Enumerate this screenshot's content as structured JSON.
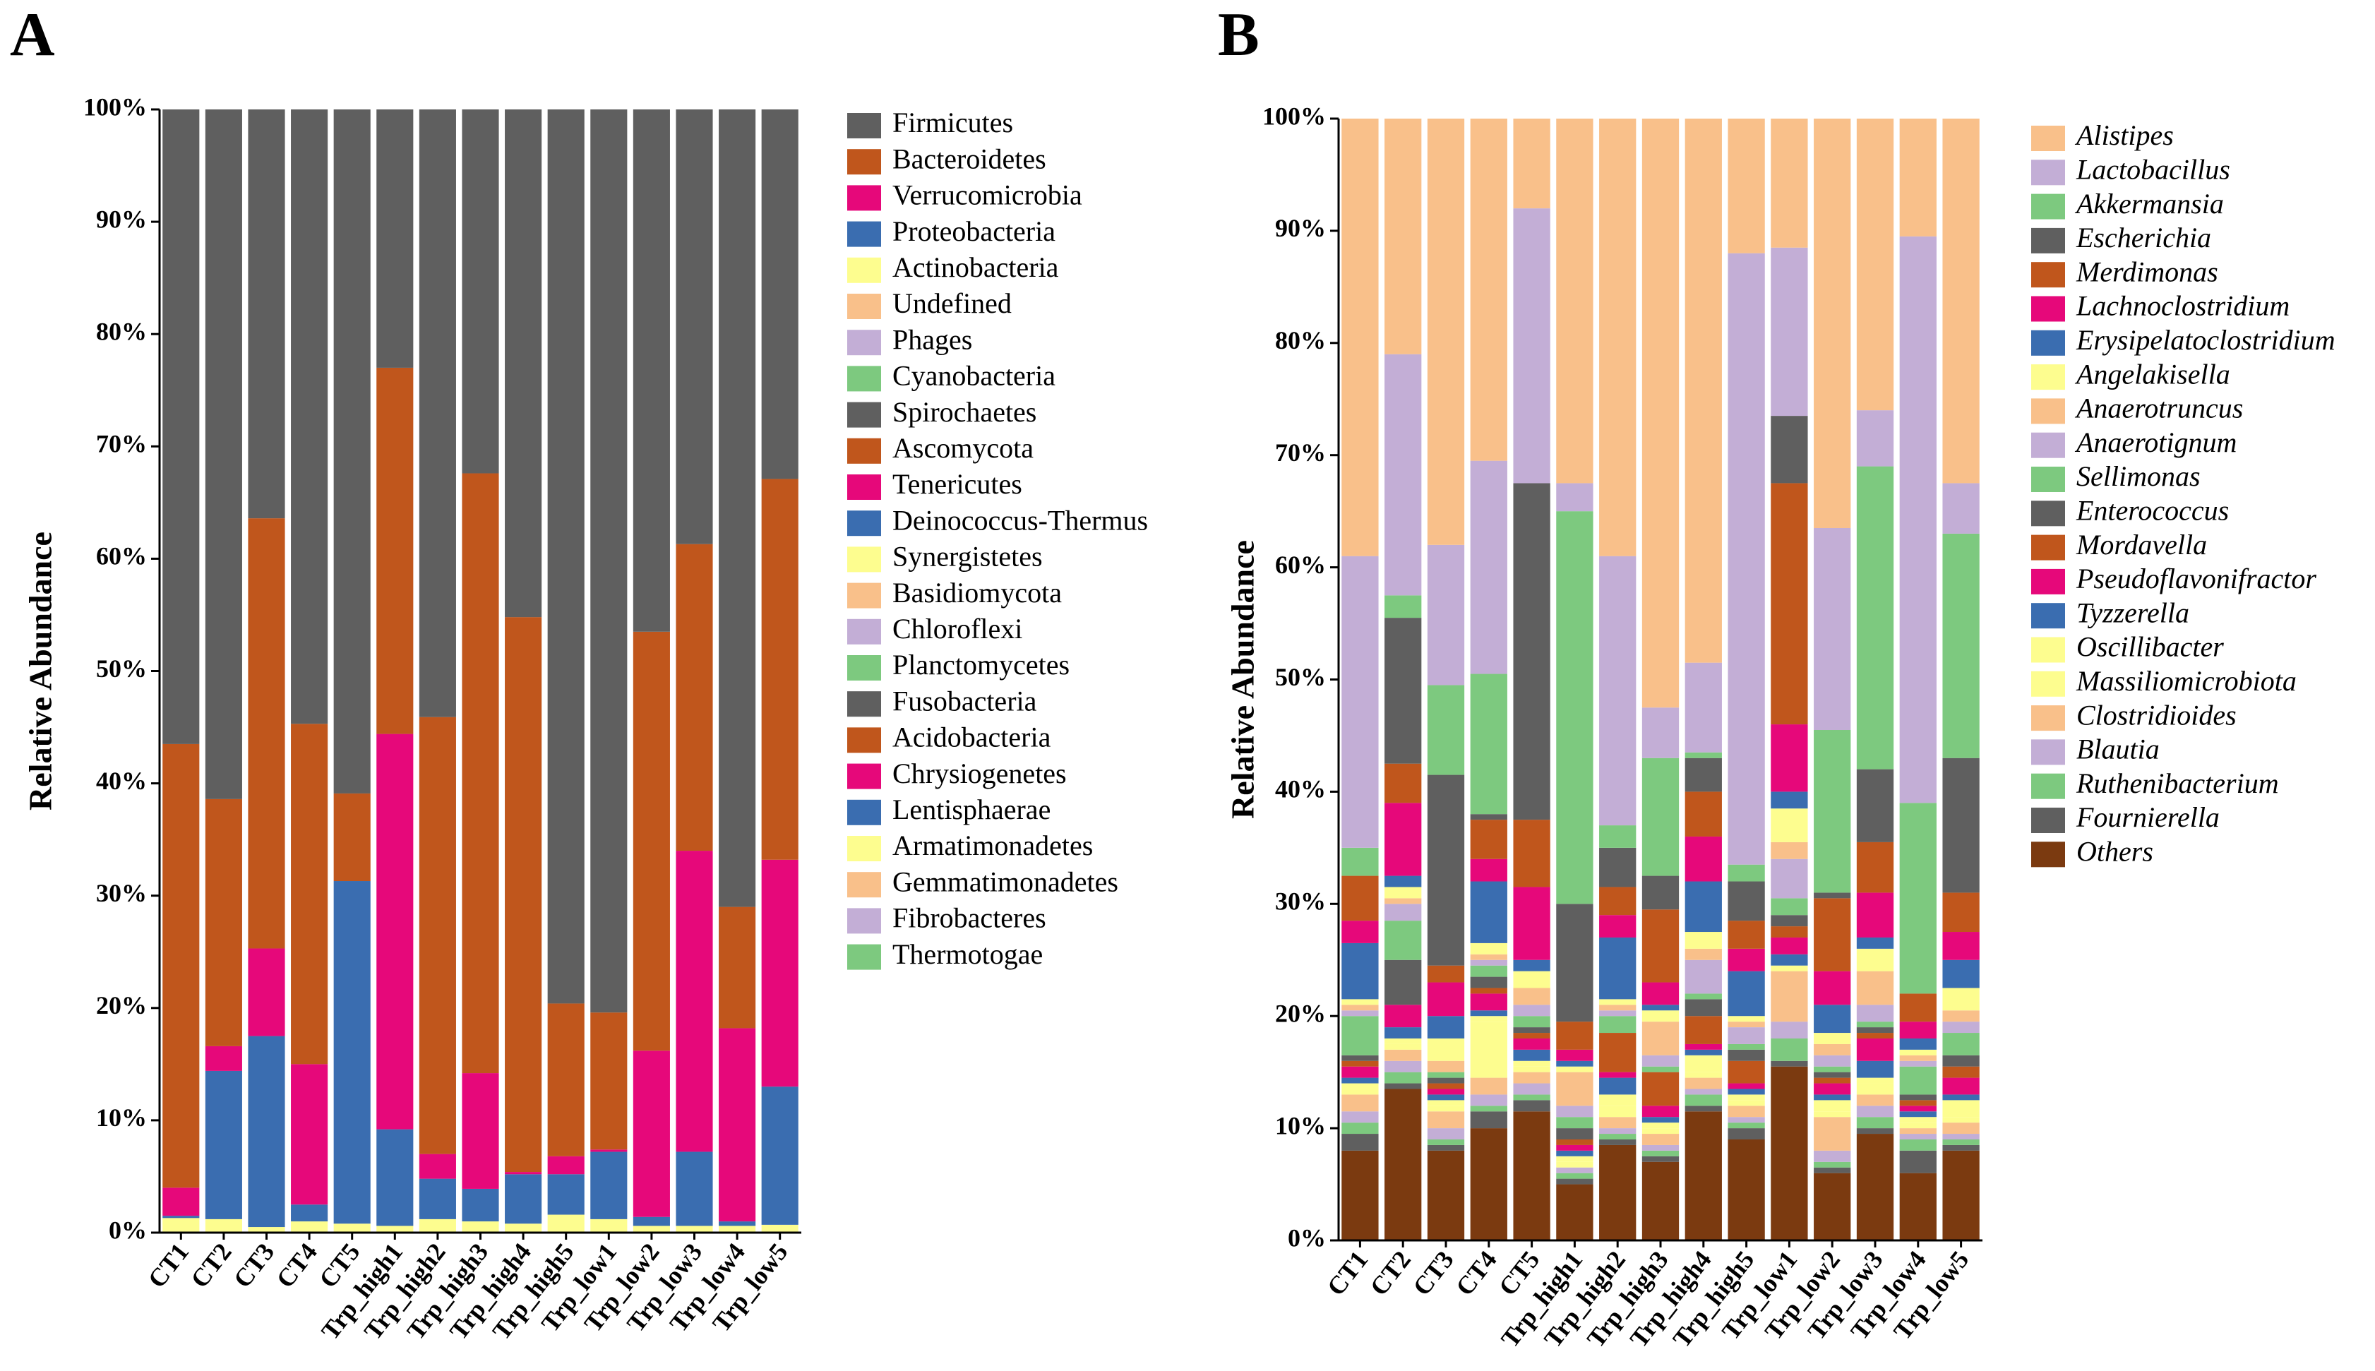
{
  "chart_data": [
    {
      "type": "bar",
      "stacked": true,
      "title": "A",
      "y_label": "Relative Abundance",
      "categories": [
        "CT1",
        "CT2",
        "CT3",
        "CT4",
        "CT5",
        "Trp_high1",
        "Trp_high2",
        "Trp_high3",
        "Trp_high4",
        "Trp_high5",
        "Trp_low1",
        "Trp_low2",
        "Trp_low3",
        "Trp_low4",
        "Trp_low5"
      ],
      "ylim": [
        0,
        100
      ],
      "yticks": [
        {
          "value": 0,
          "label": "0%"
        },
        {
          "value": 10,
          "label": "10%"
        },
        {
          "value": 20,
          "label": "20%"
        },
        {
          "value": 30,
          "label": "30%"
        },
        {
          "value": 40,
          "label": "40%"
        },
        {
          "value": 50,
          "label": "50%"
        },
        {
          "value": 60,
          "label": "60%"
        },
        {
          "value": 70,
          "label": "70%"
        },
        {
          "value": 80,
          "label": "80%"
        },
        {
          "value": 90,
          "label": "90%"
        },
        {
          "value": 100,
          "label": "100%"
        }
      ],
      "legend_italic": false,
      "series": [
        {
          "name": "Firmicutes",
          "color": "#5f5f5f",
          "values": [
            56.5,
            61.4,
            36.4,
            54.7,
            60.9,
            23,
            54.1,
            32.4,
            45.2,
            79.6,
            80.4,
            46.5,
            38.7,
            71,
            32.9
          ]
        },
        {
          "name": "Bacteroidetes",
          "color": "#c0561c",
          "values": [
            39.5,
            22,
            38.3,
            30.3,
            7.8,
            32.6,
            38.9,
            53.4,
            49.4,
            13.6,
            12.2,
            37.3,
            27.3,
            10.8,
            33.9
          ]
        },
        {
          "name": "Verrucomicrobia",
          "color": "#e6087a",
          "values": [
            2.5,
            2.2,
            7.8,
            12.5,
            0,
            35.2,
            2.2,
            10.3,
            0.2,
            1.6,
            0.2,
            14.8,
            26.8,
            17.2,
            20.2
          ]
        },
        {
          "name": "Proteobacteria",
          "color": "#3a6db0",
          "values": [
            0.2,
            13.2,
            17,
            1.5,
            30.5,
            8.6,
            3.6,
            2.9,
            4.4,
            3.6,
            6,
            0.8,
            6.6,
            0.4,
            12.3
          ]
        },
        {
          "name": "Actinobacteria",
          "color": "#fdfd8f",
          "values": [
            1.3,
            1.2,
            0.5,
            1,
            0.8,
            0.6,
            1.2,
            1,
            0.8,
            1.6,
            1.2,
            0.6,
            0.6,
            0.6,
            0.7
          ]
        },
        {
          "name": "Undefined",
          "color": "#f9c08a",
          "values": [
            0,
            0,
            0,
            0,
            0,
            0,
            0,
            0,
            0,
            0,
            0,
            0,
            0,
            0,
            0
          ]
        },
        {
          "name": "Phages",
          "color": "#c3aed6",
          "values": [
            0,
            0,
            0,
            0,
            0,
            0,
            0,
            0,
            0,
            0,
            0,
            0,
            0,
            0,
            0
          ]
        },
        {
          "name": "Cyanobacteria",
          "color": "#7dc97f",
          "values": [
            0,
            0,
            0,
            0,
            0,
            0,
            0,
            0,
            0,
            0,
            0,
            0,
            0,
            0,
            0
          ]
        },
        {
          "name": "Spirochaetes",
          "color": "#5f5f5f",
          "values": [
            0,
            0,
            0,
            0,
            0,
            0,
            0,
            0,
            0,
            0,
            0,
            0,
            0,
            0,
            0
          ]
        },
        {
          "name": "Ascomycota",
          "color": "#c0561c",
          "values": [
            0,
            0,
            0,
            0,
            0,
            0,
            0,
            0,
            0,
            0,
            0,
            0,
            0,
            0,
            0
          ]
        },
        {
          "name": "Tenericutes",
          "color": "#e6087a",
          "values": [
            0,
            0,
            0,
            0,
            0,
            0,
            0,
            0,
            0,
            0,
            0,
            0,
            0,
            0,
            0
          ]
        },
        {
          "name": "Deinococcus-Thermus",
          "color": "#3a6db0",
          "values": [
            0,
            0,
            0,
            0,
            0,
            0,
            0,
            0,
            0,
            0,
            0,
            0,
            0,
            0,
            0
          ]
        },
        {
          "name": "Synergistetes",
          "color": "#fdfd8f",
          "values": [
            0,
            0,
            0,
            0,
            0,
            0,
            0,
            0,
            0,
            0,
            0,
            0,
            0,
            0,
            0
          ]
        },
        {
          "name": "Basidiomycota",
          "color": "#f9c08a",
          "values": [
            0,
            0,
            0,
            0,
            0,
            0,
            0,
            0,
            0,
            0,
            0,
            0,
            0,
            0,
            0
          ]
        },
        {
          "name": "Chloroflexi",
          "color": "#c3aed6",
          "values": [
            0,
            0,
            0,
            0,
            0,
            0,
            0,
            0,
            0,
            0,
            0,
            0,
            0,
            0,
            0
          ]
        },
        {
          "name": "Planctomycetes",
          "color": "#7dc97f",
          "values": [
            0,
            0,
            0,
            0,
            0,
            0,
            0,
            0,
            0,
            0,
            0,
            0,
            0,
            0,
            0
          ]
        },
        {
          "name": "Fusobacteria",
          "color": "#5f5f5f",
          "values": [
            0,
            0,
            0,
            0,
            0,
            0,
            0,
            0,
            0,
            0,
            0,
            0,
            0,
            0,
            0
          ]
        },
        {
          "name": "Acidobacteria",
          "color": "#c0561c",
          "values": [
            0,
            0,
            0,
            0,
            0,
            0,
            0,
            0,
            0,
            0,
            0,
            0,
            0,
            0,
            0
          ]
        },
        {
          "name": "Chrysiogenetes",
          "color": "#e6087a",
          "values": [
            0,
            0,
            0,
            0,
            0,
            0,
            0,
            0,
            0,
            0,
            0,
            0,
            0,
            0,
            0
          ]
        },
        {
          "name": "Lentisphaerae",
          "color": "#3a6db0",
          "values": [
            0,
            0,
            0,
            0,
            0,
            0,
            0,
            0,
            0,
            0,
            0,
            0,
            0,
            0,
            0
          ]
        },
        {
          "name": "Armatimonadetes",
          "color": "#fdfd8f",
          "values": [
            0,
            0,
            0,
            0,
            0,
            0,
            0,
            0,
            0,
            0,
            0,
            0,
            0,
            0,
            0
          ]
        },
        {
          "name": "Gemmatimonadetes",
          "color": "#f9c08a",
          "values": [
            0,
            0,
            0,
            0,
            0,
            0,
            0,
            0,
            0,
            0,
            0,
            0,
            0,
            0,
            0
          ]
        },
        {
          "name": "Fibrobacteres",
          "color": "#c3aed6",
          "values": [
            0,
            0,
            0,
            0,
            0,
            0,
            0,
            0,
            0,
            0,
            0,
            0,
            0,
            0,
            0
          ]
        },
        {
          "name": "Thermotogae",
          "color": "#7dc97f",
          "values": [
            0,
            0,
            0,
            0,
            0,
            0,
            0,
            0,
            0,
            0,
            0,
            0,
            0,
            0,
            0
          ]
        }
      ]
    },
    {
      "type": "bar",
      "stacked": true,
      "title": "B",
      "y_label": "Relative Abundance",
      "categories": [
        "CT1",
        "CT2",
        "CT3",
        "CT4",
        "CT5",
        "Trp_high1",
        "Trp_high2",
        "Trp_high3",
        "Trp_high4",
        "Trp_high5",
        "Trp_low1",
        "Trp_low2",
        "Trp_low3",
        "Trp_low4",
        "Trp_low5"
      ],
      "ylim": [
        0,
        100
      ],
      "yticks": [
        {
          "value": 0,
          "label": "0%"
        },
        {
          "value": 10,
          "label": "10%"
        },
        {
          "value": 20,
          "label": "20%"
        },
        {
          "value": 30,
          "label": "30%"
        },
        {
          "value": 40,
          "label": "40%"
        },
        {
          "value": 50,
          "label": "50%"
        },
        {
          "value": 60,
          "label": "60%"
        },
        {
          "value": 70,
          "label": "70%"
        },
        {
          "value": 80,
          "label": "80%"
        },
        {
          "value": 90,
          "label": "90%"
        },
        {
          "value": 100,
          "label": "100%"
        }
      ],
      "legend_italic": true,
      "series": [
        {
          "name": "Alistipes",
          "color": "#f9c08a",
          "values": [
            39,
            21,
            38,
            30.5,
            8,
            32.5,
            39,
            52.5,
            48.5,
            12,
            11.5,
            36.5,
            26,
            10.5,
            32.5
          ]
        },
        {
          "name": "Lactobacillus",
          "color": "#c3aed6",
          "values": [
            26,
            21.5,
            12.5,
            19,
            24.5,
            2.5,
            24,
            4.5,
            8,
            54.5,
            15,
            18,
            5,
            50.5,
            4.5
          ]
        },
        {
          "name": "Akkermansia",
          "color": "#7dc97f",
          "values": [
            2.5,
            2,
            8,
            12.5,
            0,
            35,
            2,
            10.5,
            0.5,
            1.5,
            0,
            14.5,
            27,
            17,
            20
          ]
        },
        {
          "name": "Escherichia",
          "color": "#5f5f5f",
          "values": [
            0,
            13,
            17,
            0.5,
            30,
            10.5,
            3.5,
            3,
            3,
            3.5,
            6,
            0.5,
            6.5,
            0,
            12
          ]
        },
        {
          "name": "Merdimonas",
          "color": "#c0561c",
          "values": [
            4,
            3.5,
            1.5,
            3.5,
            6,
            2.5,
            2.5,
            6.5,
            4,
            2.5,
            21.5,
            6.5,
            4.5,
            2.5,
            3.5
          ]
        },
        {
          "name": "Lachnoclostridium",
          "color": "#e6087a",
          "values": [
            2,
            6.5,
            3,
            2,
            6.5,
            1,
            2,
            2,
            4,
            2,
            6,
            3,
            4,
            1.5,
            2.5
          ]
        },
        {
          "name": "Erysipelatoclostridium",
          "color": "#3a6db0",
          "values": [
            5,
            1,
            2,
            5.5,
            1,
            0.5,
            5.5,
            0.5,
            4.5,
            4,
            1.5,
            2.5,
            1,
            1,
            2.5
          ]
        },
        {
          "name": "Angelakisella",
          "color": "#fdfd8f",
          "values": [
            0.5,
            1,
            2,
            1,
            1.5,
            0.5,
            0.5,
            1,
            1.5,
            0.5,
            3,
            1,
            2,
            0.5,
            2
          ]
        },
        {
          "name": "Anaerotruncus",
          "color": "#f9c08a",
          "values": [
            0.5,
            0.5,
            1,
            0.5,
            1.5,
            3,
            0.5,
            3,
            1,
            0.5,
            1.5,
            1,
            3,
            0.5,
            1
          ]
        },
        {
          "name": "Anaerotignum",
          "color": "#c3aed6",
          "values": [
            0.5,
            1.5,
            0,
            0.5,
            1,
            1,
            0.5,
            1,
            3,
            1.5,
            3.5,
            1,
            1.5,
            0.5,
            1
          ]
        },
        {
          "name": "Sellimonas",
          "color": "#7dc97f",
          "values": [
            3.5,
            3.5,
            0.5,
            1,
            1,
            1,
            1.5,
            0.5,
            0.5,
            0.5,
            1.5,
            0.5,
            0.5,
            2.5,
            2
          ]
        },
        {
          "name": "Enterococcus",
          "color": "#5f5f5f",
          "values": [
            0.5,
            4,
            0.5,
            1,
            0.5,
            1,
            0,
            0,
            1.5,
            1,
            1,
            0.5,
            0.5,
            0.5,
            1
          ]
        },
        {
          "name": "Mordavella",
          "color": "#c0561c",
          "values": [
            0.5,
            0,
            0.5,
            0.5,
            0.5,
            0.5,
            3.5,
            3,
            2.5,
            2,
            1,
            0.5,
            0.5,
            0.5,
            1
          ]
        },
        {
          "name": "Pseudoflavonifractor",
          "color": "#e6087a",
          "values": [
            1,
            2,
            0.5,
            1.5,
            1,
            0.5,
            0.5,
            1,
            0.5,
            0.5,
            1.5,
            1,
            2,
            0.5,
            1.5
          ]
        },
        {
          "name": "Tyzzerella",
          "color": "#3a6db0",
          "values": [
            0.5,
            1,
            0.5,
            0.5,
            1,
            0.5,
            1.5,
            0.5,
            0.5,
            0.5,
            1,
            0.5,
            1.5,
            0.5,
            0.5
          ]
        },
        {
          "name": "Oscillibacter",
          "color": "#fdfd8f",
          "values": [
            0.5,
            0.5,
            0.5,
            0.5,
            0.5,
            0.5,
            1,
            0.5,
            1.5,
            0.5,
            0.5,
            1,
            0.5,
            0.5,
            1.5
          ]
        },
        {
          "name": "Massiliomicrobiota",
          "color": "#fdfd8f",
          "values": [
            0.5,
            0.5,
            0.5,
            5,
            0.5,
            0.5,
            1,
            0.5,
            0.5,
            0.5,
            0,
            0.5,
            1,
            0.5,
            0.5
          ]
        },
        {
          "name": "Clostridioides",
          "color": "#f9c08a",
          "values": [
            1.5,
            1,
            1.5,
            1.5,
            1,
            0,
            1,
            1,
            1,
            1,
            4.5,
            3,
            1,
            0.5,
            1
          ]
        },
        {
          "name": "Blautia",
          "color": "#c3aed6",
          "values": [
            1,
            1,
            1,
            1,
            1,
            0.5,
            0.5,
            0.5,
            0.5,
            0.5,
            1.5,
            1,
            1,
            0.5,
            0.5
          ]
        },
        {
          "name": "Ruthenibacterium",
          "color": "#7dc97f",
          "values": [
            1,
            1,
            0.5,
            0.5,
            0.5,
            0.5,
            0.5,
            0.5,
            1,
            0.5,
            2,
            0.5,
            1,
            1,
            0.5
          ]
        },
        {
          "name": "Fournierella",
          "color": "#5f5f5f",
          "values": [
            1.5,
            0.5,
            0.5,
            1.5,
            1,
            0.5,
            0.5,
            0.5,
            0.5,
            1,
            0.5,
            0.5,
            0.5,
            2,
            0.5
          ]
        },
        {
          "name": "Others",
          "color": "#7b3a10",
          "values": [
            8,
            13.5,
            8,
            10,
            11.5,
            5,
            8.5,
            7,
            11.5,
            9,
            15.5,
            6,
            9.5,
            6,
            8
          ]
        }
      ]
    }
  ]
}
